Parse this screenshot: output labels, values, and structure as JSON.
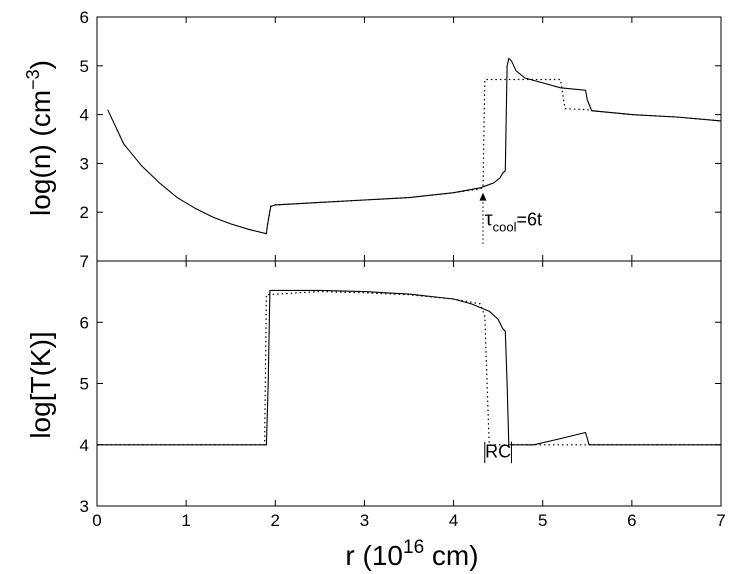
{
  "chart_data": [
    {
      "type": "line",
      "panel": "top",
      "ylabel": "log(n) (cm",
      "ylabel_sup": "−3",
      "ylabel_close": ")",
      "xlim": [
        0,
        7
      ],
      "ylim": [
        1,
        6
      ],
      "yticks": [
        "2",
        "3",
        "4",
        "5",
        "6"
      ],
      "grid": false,
      "series": [
        {
          "style": "solid",
          "x": [
            0.12,
            0.3,
            0.5,
            0.7,
            0.9,
            1.1,
            1.3,
            1.5,
            1.7,
            1.9,
            1.91,
            1.95,
            2.0,
            2.5,
            3.0,
            3.5,
            4.0,
            4.3,
            4.45,
            4.52,
            4.55,
            4.58,
            4.6,
            4.62,
            4.65,
            4.7,
            4.8,
            5.0,
            5.2,
            5.48,
            5.5,
            5.55,
            6.0,
            6.5,
            7.0
          ],
          "y": [
            4.1,
            3.4,
            2.95,
            2.6,
            2.3,
            2.08,
            1.9,
            1.76,
            1.65,
            1.56,
            1.72,
            2.12,
            2.15,
            2.2,
            2.25,
            2.3,
            2.4,
            2.5,
            2.6,
            2.7,
            2.8,
            2.85,
            5.0,
            5.15,
            5.1,
            4.9,
            4.75,
            4.65,
            4.55,
            4.5,
            4.3,
            4.08,
            4.0,
            3.95,
            3.87
          ]
        },
        {
          "style": "dotted",
          "x": [
            1.9,
            1.91,
            1.95,
            2.0,
            2.5,
            3.0,
            3.5,
            4.0,
            4.3,
            4.33,
            4.35,
            4.6,
            5.0,
            5.2,
            5.25,
            5.5,
            5.55,
            6.0,
            6.5,
            7.0
          ],
          "y": [
            1.56,
            1.72,
            2.12,
            2.15,
            2.2,
            2.25,
            2.3,
            2.4,
            2.48,
            2.5,
            4.72,
            4.72,
            4.72,
            4.72,
            4.12,
            4.1,
            4.08,
            4.0,
            3.95,
            3.87
          ]
        }
      ],
      "annotations": {
        "arrow_x": 4.33,
        "arrow_y_from": 1.35,
        "arrow_y_to": 2.4,
        "tau_label": "τ",
        "tau_sub": "cool",
        "tau_rest": "=6t",
        "label_x": 4.35,
        "label_y": 1.73
      }
    },
    {
      "type": "line",
      "panel": "bottom",
      "xlabel": "r (10",
      "xlabel_sup": "16",
      "xlabel_close": " cm)",
      "ylabel": "log[T(K)]",
      "xlim": [
        0,
        7
      ],
      "ylim": [
        3,
        7
      ],
      "xticks": [
        "0",
        "1",
        "2",
        "3",
        "4",
        "5",
        "6",
        "7"
      ],
      "yticks": [
        "3",
        "4",
        "5",
        "6",
        "7"
      ],
      "grid": false,
      "series": [
        {
          "style": "solid",
          "x": [
            0,
            1.9,
            1.92,
            1.94,
            2.5,
            3.0,
            3.5,
            4.0,
            4.2,
            4.4,
            4.5,
            4.55,
            4.58,
            4.6,
            4.62,
            4.9,
            5.2,
            5.48,
            5.52,
            7.0
          ],
          "y": [
            4.0,
            4.0,
            5.0,
            6.52,
            6.52,
            6.5,
            6.46,
            6.38,
            6.3,
            6.18,
            6.05,
            5.9,
            5.85,
            5.0,
            4.0,
            4.0,
            4.1,
            4.2,
            4.0,
            4.0
          ]
        },
        {
          "style": "dotted",
          "x": [
            0,
            1.88,
            1.9,
            2.5,
            3.0,
            3.5,
            4.0,
            4.3,
            4.35,
            4.4,
            4.6,
            5.5,
            7.0
          ],
          "y": [
            4.0,
            4.0,
            6.45,
            6.5,
            6.48,
            6.45,
            6.38,
            6.3,
            6.1,
            4.0,
            4.0,
            4.0,
            4.0
          ]
        }
      ],
      "annotations": {
        "rc_label": "RC",
        "rc_x_left": 4.35,
        "rc_x_right": 4.65,
        "rc_y": 3.87,
        "rc_y_top": 4.05,
        "rc_y_bottom": 3.7
      }
    }
  ]
}
